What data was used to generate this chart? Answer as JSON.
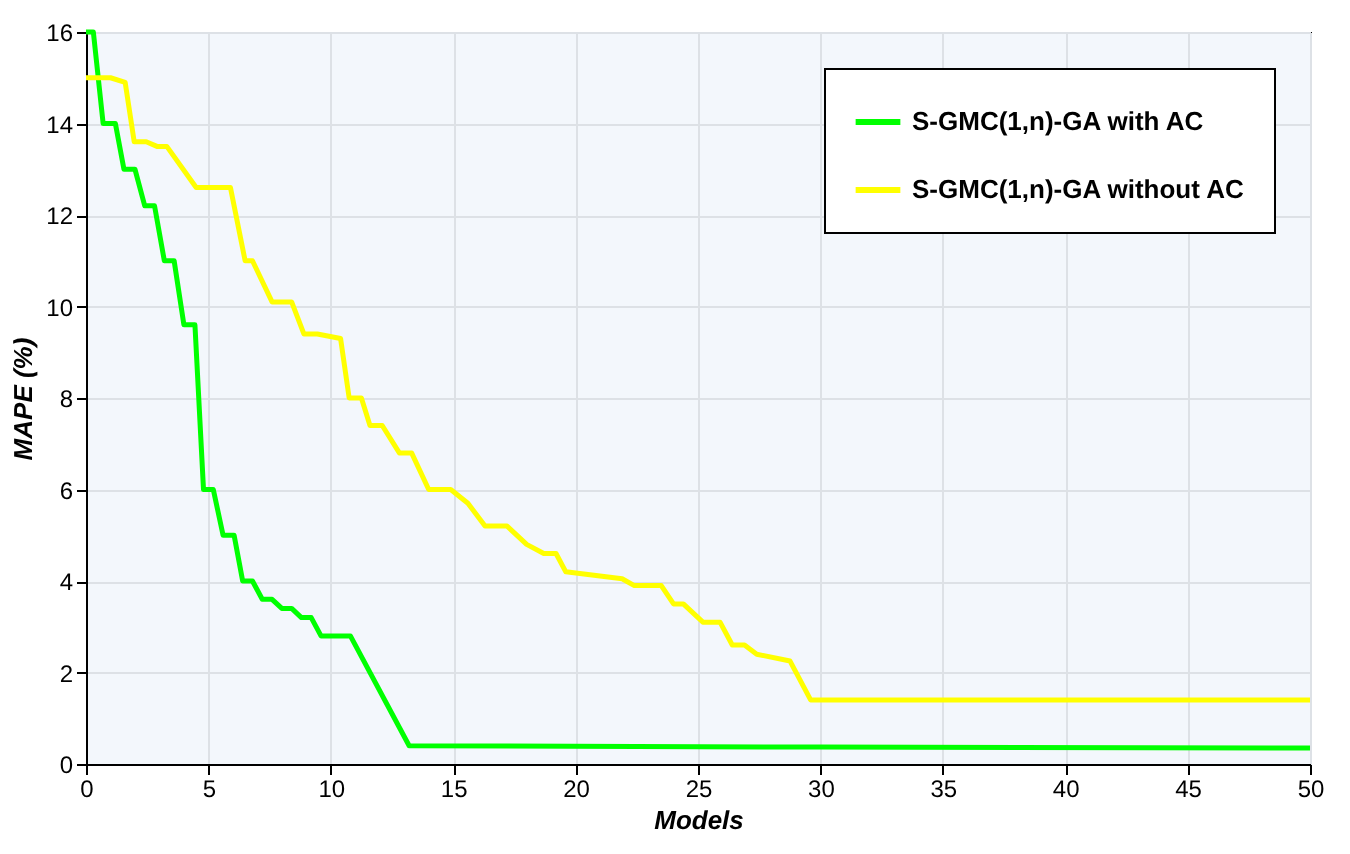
{
  "chart_data": {
    "type": "line",
    "xlabel": "Models",
    "ylabel": "MAPE (%)",
    "xlim": [
      0,
      50
    ],
    "xticks": [
      0,
      5,
      10,
      15,
      20,
      25,
      30,
      35,
      40,
      45,
      50
    ],
    "ylim": [
      0,
      16
    ],
    "yticks": [
      0,
      2,
      4,
      6,
      8,
      10,
      12,
      14,
      16
    ],
    "grid": true,
    "legend": "top right",
    "line_style": "solid",
    "marker": "none",
    "series": [
      {
        "name": "S-GMC(1,n)-GA with AC",
        "color": "#00ff00",
        "x": [
          0,
          0.3,
          0.7,
          1.2,
          1.55,
          2.0,
          2.4,
          2.8,
          3.2,
          3.6,
          4.0,
          4.45,
          4.8,
          5.2,
          5.6,
          6.05,
          6.4,
          6.8,
          7.2,
          7.6,
          8.0,
          8.4,
          8.8,
          9.2,
          9.6,
          10.8,
          13.2,
          30,
          50
        ],
        "values": [
          16,
          16,
          14,
          14,
          13,
          13,
          12.2,
          12.2,
          11,
          11,
          9.6,
          9.6,
          6,
          6,
          5,
          5,
          4,
          4,
          3.6,
          3.6,
          3.4,
          3.4,
          3.2,
          3.2,
          2.8,
          2.8,
          0.4,
          0.37,
          0.35
        ]
      },
      {
        "name": "S-GMC(1,n)-GA without AC",
        "color": "#ffff00",
        "x": [
          0,
          1.0,
          1.6,
          1.97,
          2.46,
          2.9,
          3.3,
          4.5,
          5.9,
          6.5,
          6.8,
          7.6,
          8.4,
          8.9,
          9.45,
          10.4,
          10.75,
          11.25,
          11.6,
          12.1,
          12.8,
          13.3,
          14.0,
          14.9,
          15.6,
          16.3,
          17.2,
          18.0,
          18.7,
          19.2,
          19.6,
          21.9,
          22.4,
          23.5,
          24.0,
          24.4,
          25.2,
          25.9,
          26.4,
          26.9,
          27.4,
          28.76,
          29.6,
          50
        ],
        "values": [
          15,
          15,
          14.9,
          13.6,
          13.6,
          13.5,
          13.5,
          12.6,
          12.6,
          11,
          11,
          10.1,
          10.1,
          9.4,
          9.4,
          9.3,
          8,
          8,
          7.4,
          7.4,
          6.8,
          6.8,
          6,
          6,
          5.7,
          5.2,
          5.2,
          4.8,
          4.6,
          4.6,
          4.2,
          4.05,
          3.9,
          3.9,
          3.5,
          3.5,
          3.1,
          3.1,
          2.6,
          2.6,
          2.4,
          2.25,
          1.4,
          1.4
        ]
      }
    ]
  }
}
